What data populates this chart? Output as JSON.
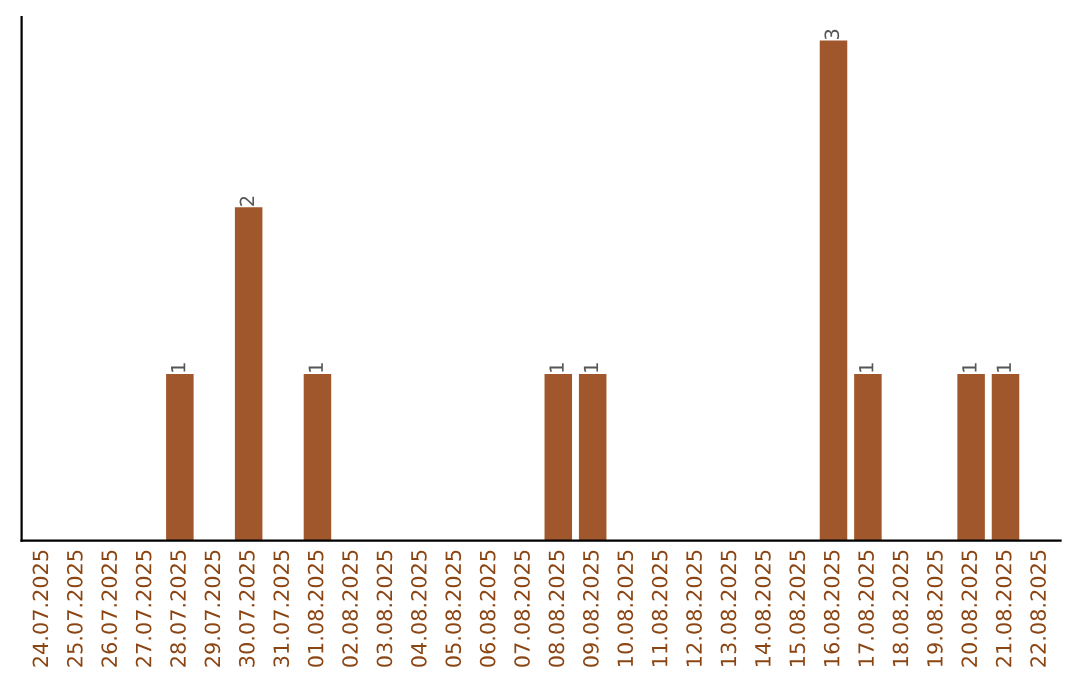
{
  "chart_data": {
    "type": "bar",
    "categories": [
      "24.07.2025",
      "25.07.2025",
      "26.07.2025",
      "27.07.2025",
      "28.07.2025",
      "29.07.2025",
      "30.07.2025",
      "31.07.2025",
      "01.08.2025",
      "02.08.2025",
      "03.08.2025",
      "04.08.2025",
      "05.08.2025",
      "06.08.2025",
      "07.08.2025",
      "08.08.2025",
      "09.08.2025",
      "10.08.2025",
      "11.08.2025",
      "12.08.2025",
      "13.08.2025",
      "14.08.2025",
      "15.08.2025",
      "16.08.2025",
      "17.08.2025",
      "18.08.2025",
      "19.08.2025",
      "20.08.2025",
      "21.08.2025",
      "22.08.2025"
    ],
    "values": [
      0,
      0,
      0,
      0,
      1,
      0,
      2,
      0,
      1,
      0,
      0,
      0,
      0,
      0,
      0,
      1,
      1,
      0,
      0,
      0,
      0,
      0,
      0,
      3,
      1,
      0,
      0,
      1,
      1,
      0
    ],
    "value_labels": [
      null,
      null,
      null,
      null,
      "1",
      null,
      "2",
      null,
      "1",
      null,
      null,
      null,
      null,
      null,
      null,
      "1",
      "1",
      null,
      null,
      null,
      null,
      null,
      null,
      "3",
      "1",
      null,
      null,
      "1",
      "1",
      null
    ],
    "color": "#a0572b",
    "tick_labels": "x",
    "grid": false,
    "legend": false
  }
}
